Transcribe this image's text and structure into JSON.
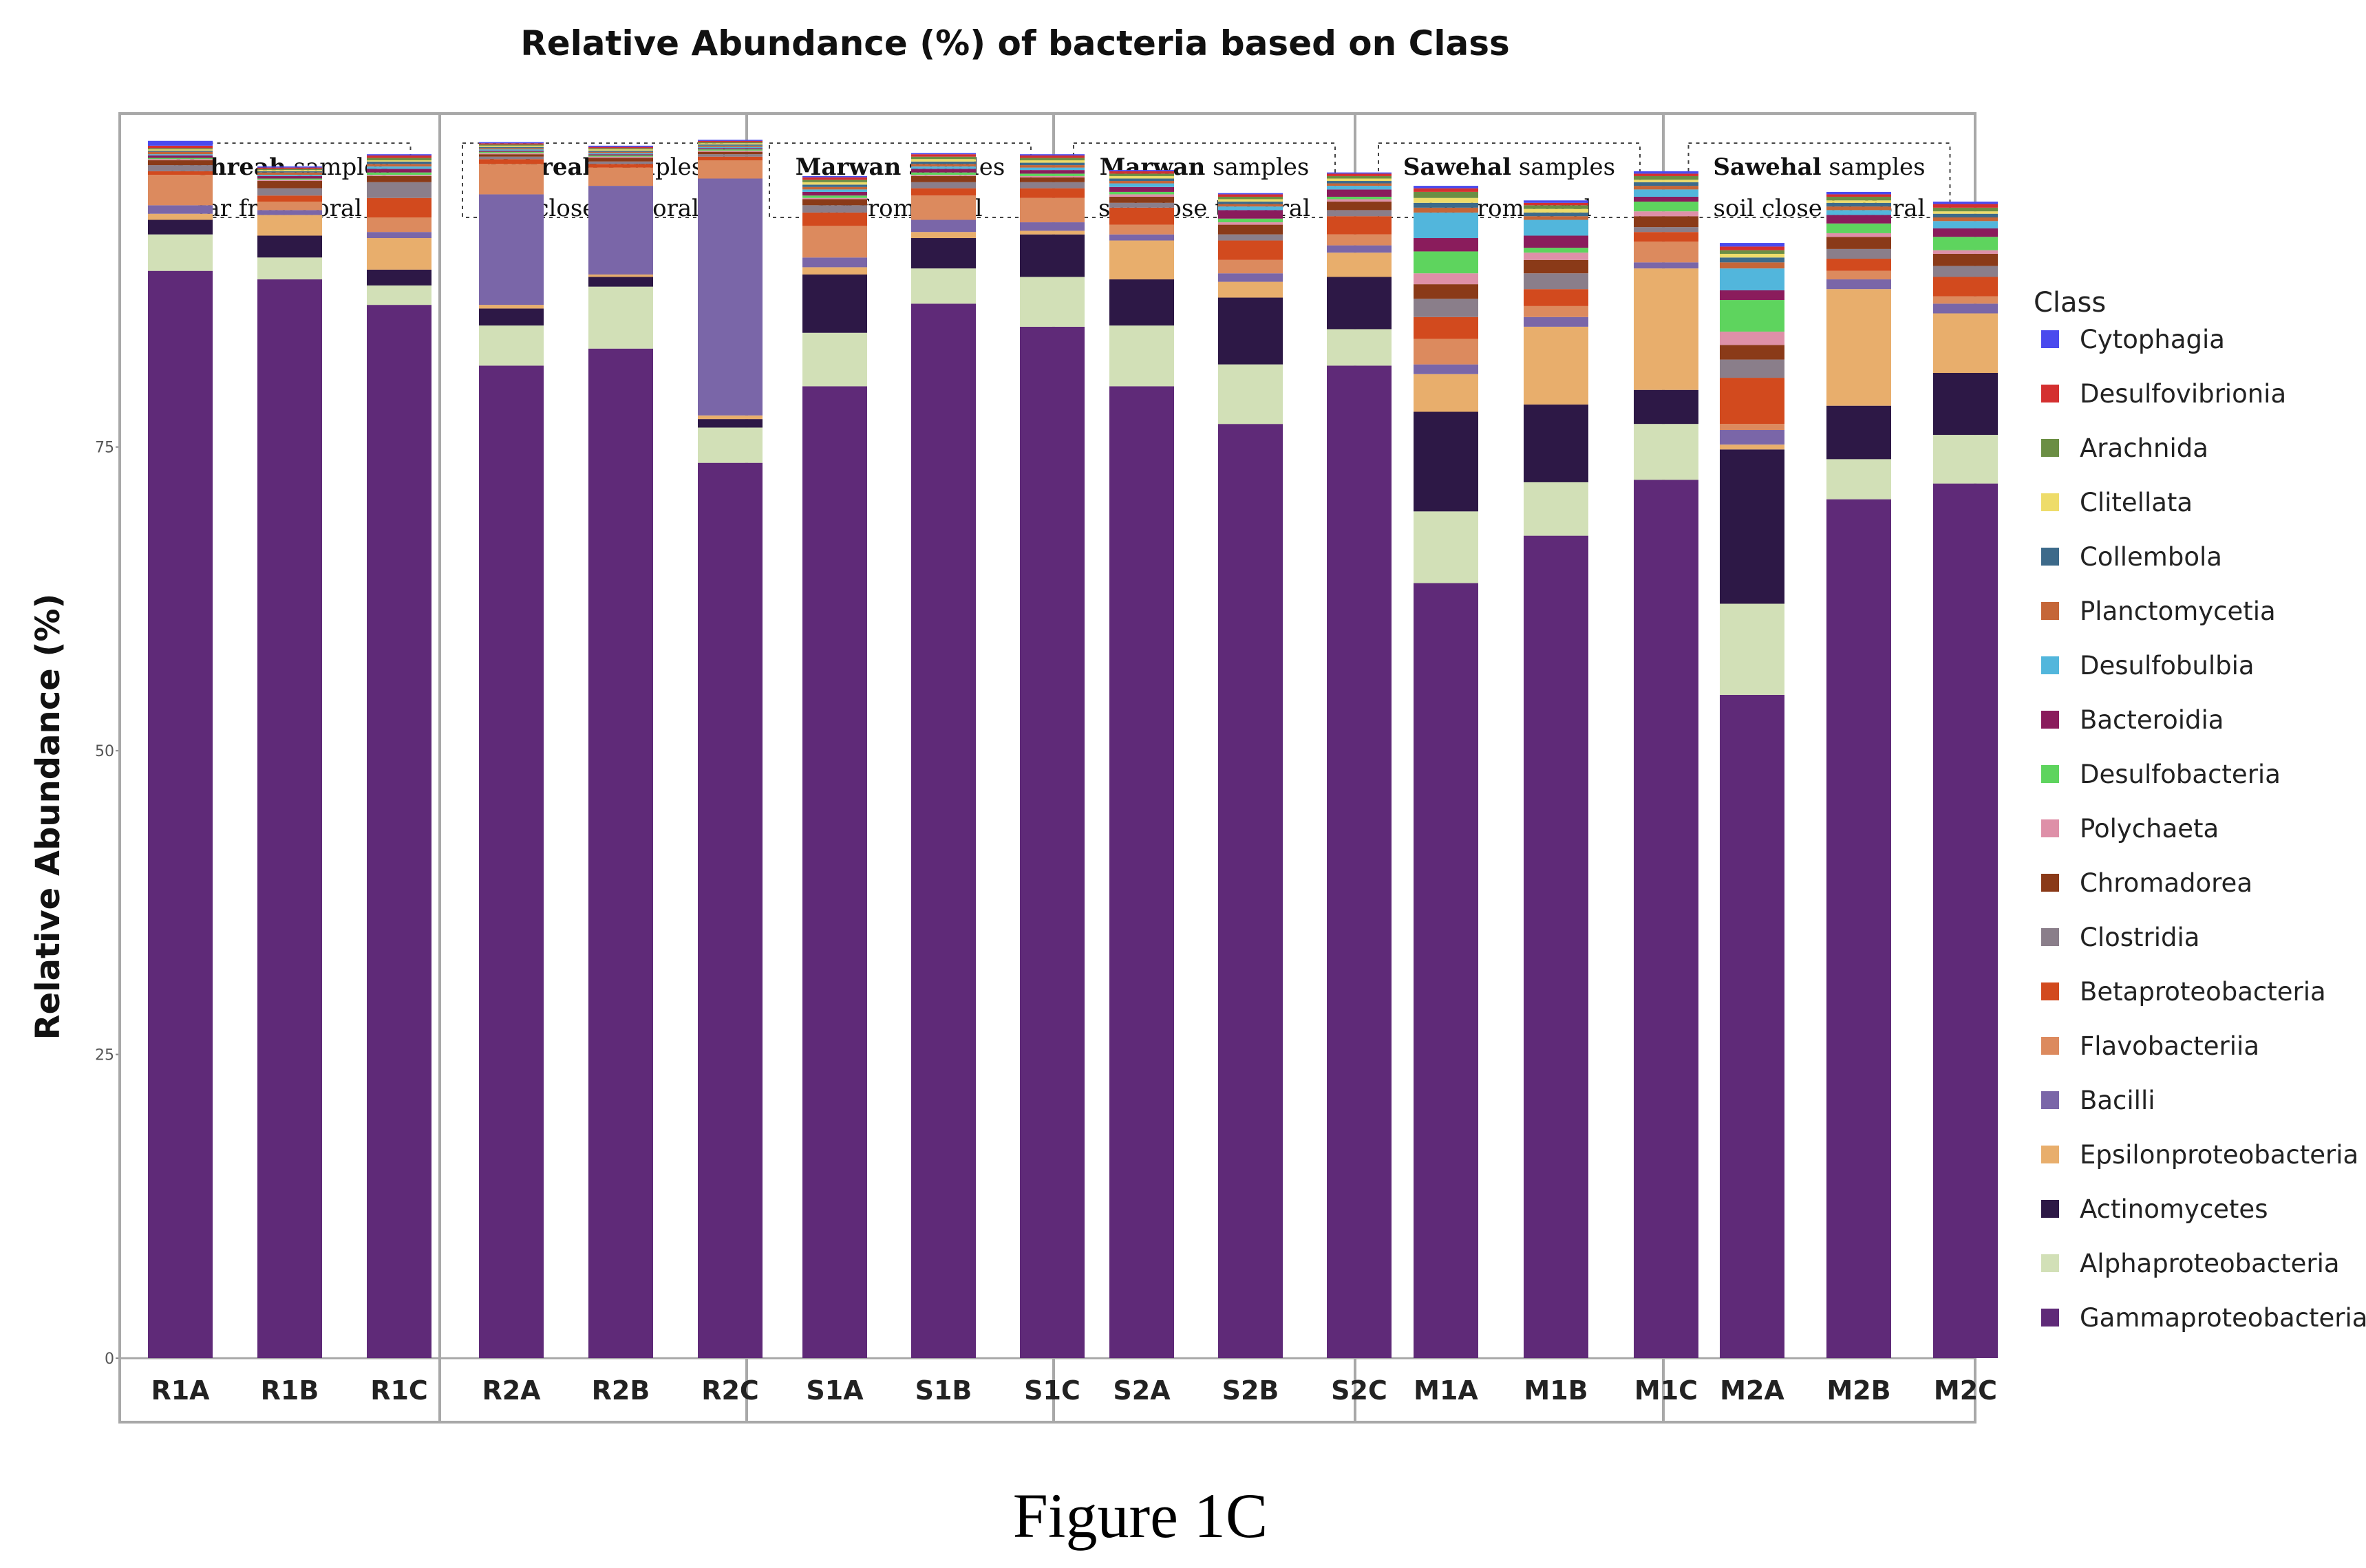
{
  "caption": "Figure 1C",
  "chart_data": {
    "type": "bar",
    "stacked": true,
    "title": "Relative Abundance (%) of bacteria based on Class",
    "ylabel": "Relative Abundance (%)",
    "xlabel": "",
    "ylim": [
      0,
      105
    ],
    "yticks": [
      0,
      25,
      50,
      75
    ],
    "legend_title": "Class",
    "legend_position": "right",
    "categories": [
      "R1A",
      "R1B",
      "R1C",
      "R2A",
      "R2B",
      "R2C",
      "S1A",
      "S1B",
      "S1C",
      "S2A",
      "S2B",
      "S2C",
      "M1A",
      "M1B",
      "M1C",
      "M2A",
      "M2B",
      "M2C"
    ],
    "panels": [
      {
        "bold": "Alshreah",
        "rest": " samples",
        "line2": "far from coral",
        "categories": [
          "R1A",
          "R1B",
          "R1C"
        ]
      },
      {
        "bold": "Alshreah",
        "rest": " samples",
        "line2": "soil close to Coral",
        "categories": [
          "R2A",
          "R2B",
          "R2C"
        ]
      },
      {
        "bold": "Marwan",
        "rest": " samples",
        "line2": "far from coral",
        "categories": [
          "S1A",
          "S1B",
          "S1C"
        ]
      },
      {
        "bold": "Marwan",
        "rest": " samples",
        "line2": "soil close to Coral",
        "categories": [
          "S2A",
          "S2B",
          "S2C"
        ]
      },
      {
        "bold": "Sawehal",
        "rest": " samples",
        "line2": "far from coral",
        "categories": [
          "M1A",
          "M1B",
          "M1C"
        ]
      },
      {
        "bold": "Sawehal",
        "rest": " samples",
        "line2": "soil close to Coral",
        "categories": [
          "M2A",
          "M2B",
          "M2C"
        ]
      }
    ],
    "series": [
      {
        "name": "Gammaproteobacteria",
        "color": "#5f2a78",
        "values": [
          89.5,
          88.8,
          86.7,
          81.7,
          83.1,
          73.7,
          80.0,
          86.8,
          84.9,
          80.0,
          76.9,
          81.7,
          63.8,
          67.7,
          72.3,
          54.6,
          70.7,
          72.0
        ]
      },
      {
        "name": "Alphaproteobacteria",
        "color": "#d2e0b7",
        "values": [
          3.0,
          1.8,
          1.6,
          3.3,
          5.1,
          2.9,
          4.4,
          2.9,
          4.1,
          5.0,
          4.9,
          3.0,
          5.9,
          4.4,
          4.6,
          7.5,
          3.3,
          4.0
        ]
      },
      {
        "name": "Actinomycetes",
        "color": "#2d1846",
        "values": [
          1.2,
          1.8,
          1.3,
          1.4,
          0.8,
          0.7,
          4.8,
          2.5,
          3.5,
          3.8,
          5.5,
          4.3,
          8.2,
          6.4,
          2.8,
          12.7,
          4.4,
          5.1
        ]
      },
      {
        "name": "Epsilonproteobacteria",
        "color": "#e8ae6c",
        "values": [
          0.5,
          1.7,
          2.6,
          0.3,
          0.2,
          0.3,
          0.6,
          0.5,
          0.3,
          3.2,
          1.3,
          2.0,
          3.1,
          6.4,
          10.0,
          0.4,
          9.6,
          4.9
        ]
      },
      {
        "name": "Bacilli",
        "color": "#7a66a8",
        "values": [
          0.7,
          0.4,
          0.5,
          9.1,
          7.3,
          19.5,
          0.8,
          1.0,
          0.7,
          0.5,
          0.7,
          0.6,
          0.8,
          0.8,
          0.5,
          1.2,
          0.8,
          0.8
        ]
      },
      {
        "name": "Flavobacteriia",
        "color": "#dc8a5e",
        "values": [
          2.5,
          0.7,
          1.2,
          2.5,
          1.5,
          1.5,
          2.6,
          2.0,
          2.0,
          0.8,
          1.1,
          0.9,
          2.1,
          0.9,
          1.7,
          0.5,
          0.7,
          0.6
        ]
      },
      {
        "name": "Betaproteobacteria",
        "color": "#d24a1e",
        "values": [
          0.3,
          0.5,
          1.6,
          0.4,
          0.3,
          0.3,
          1.1,
          0.6,
          0.8,
          1.4,
          1.6,
          1.5,
          1.8,
          1.4,
          0.8,
          3.8,
          1.0,
          1.6
        ]
      },
      {
        "name": "Clostridia",
        "color": "#8a7e8a",
        "values": [
          0.5,
          0.6,
          1.3,
          0.2,
          0.2,
          0.2,
          0.6,
          0.5,
          0.5,
          0.4,
          0.5,
          0.5,
          1.5,
          1.3,
          0.4,
          1.5,
          0.8,
          0.9
        ]
      },
      {
        "name": "Chromadorea",
        "color": "#8a3a18",
        "values": [
          0.4,
          0.6,
          0.5,
          0.2,
          0.3,
          0.2,
          0.5,
          0.5,
          0.4,
          0.5,
          0.8,
          0.7,
          1.2,
          1.1,
          0.9,
          1.2,
          1.0,
          1.0
        ]
      },
      {
        "name": "Polychaeta",
        "color": "#de90a8",
        "values": [
          0.1,
          0.1,
          0.1,
          0.1,
          0.1,
          0.1,
          0.1,
          0.1,
          0.1,
          0.2,
          0.2,
          0.2,
          0.9,
          0.6,
          0.4,
          1.1,
          0.3,
          0.3
        ]
      },
      {
        "name": "Desulfobacteria",
        "color": "#5ed45e",
        "values": [
          0.1,
          0.1,
          0.2,
          0.1,
          0.1,
          0.1,
          0.2,
          0.2,
          0.2,
          0.2,
          0.3,
          0.2,
          1.8,
          0.4,
          0.8,
          2.6,
          0.8,
          1.1
        ]
      },
      {
        "name": "Bacteroidia",
        "color": "#8a1c5c",
        "values": [
          0.2,
          0.2,
          0.3,
          0.1,
          0.1,
          0.1,
          0.3,
          0.3,
          0.3,
          0.4,
          0.7,
          0.6,
          1.1,
          1.0,
          0.4,
          0.8,
          0.7,
          0.7
        ]
      },
      {
        "name": "Desulfobulbia",
        "color": "#52b6dc",
        "values": [
          0.1,
          0.1,
          0.2,
          0.1,
          0.1,
          0.1,
          0.2,
          0.2,
          0.2,
          0.3,
          0.3,
          0.3,
          2.1,
          1.3,
          0.6,
          1.8,
          0.4,
          0.6
        ]
      },
      {
        "name": "Planctomycetia",
        "color": "#c56638",
        "values": [
          0.2,
          0.2,
          0.2,
          0.1,
          0.1,
          0.1,
          0.2,
          0.2,
          0.2,
          0.2,
          0.2,
          0.2,
          0.4,
          0.3,
          0.3,
          0.5,
          0.3,
          0.3
        ]
      },
      {
        "name": "Collembola",
        "color": "#3d6a8a",
        "values": [
          0.1,
          0.1,
          0.2,
          0.1,
          0.1,
          0.1,
          0.2,
          0.2,
          0.2,
          0.2,
          0.2,
          0.2,
          0.4,
          0.3,
          0.3,
          0.4,
          0.3,
          0.3
        ]
      },
      {
        "name": "Clitellata",
        "color": "#eedc6a",
        "values": [
          0.1,
          0.1,
          0.1,
          0.1,
          0.1,
          0.1,
          0.2,
          0.2,
          0.2,
          0.2,
          0.2,
          0.2,
          0.4,
          0.3,
          0.2,
          0.3,
          0.2,
          0.2
        ]
      },
      {
        "name": "Arachnida",
        "color": "#6b8e44",
        "values": [
          0.1,
          0.1,
          0.2,
          0.1,
          0.1,
          0.1,
          0.2,
          0.2,
          0.2,
          0.2,
          0.2,
          0.2,
          0.5,
          0.3,
          0.3,
          0.3,
          0.3,
          0.3
        ]
      },
      {
        "name": "Desulfovibrionia",
        "color": "#d43030",
        "values": [
          0.2,
          0.1,
          0.2,
          0.1,
          0.1,
          0.1,
          0.2,
          0.2,
          0.2,
          0.2,
          0.2,
          0.2,
          0.3,
          0.2,
          0.2,
          0.3,
          0.2,
          0.3
        ]
      },
      {
        "name": "Cytophagia",
        "color": "#4a4aee",
        "values": [
          0.4,
          0.1,
          0.1,
          0.1,
          0.1,
          0.1,
          0.1,
          0.1,
          0.1,
          0.1,
          0.1,
          0.1,
          0.2,
          0.2,
          0.2,
          0.3,
          0.2,
          0.2
        ]
      }
    ]
  }
}
